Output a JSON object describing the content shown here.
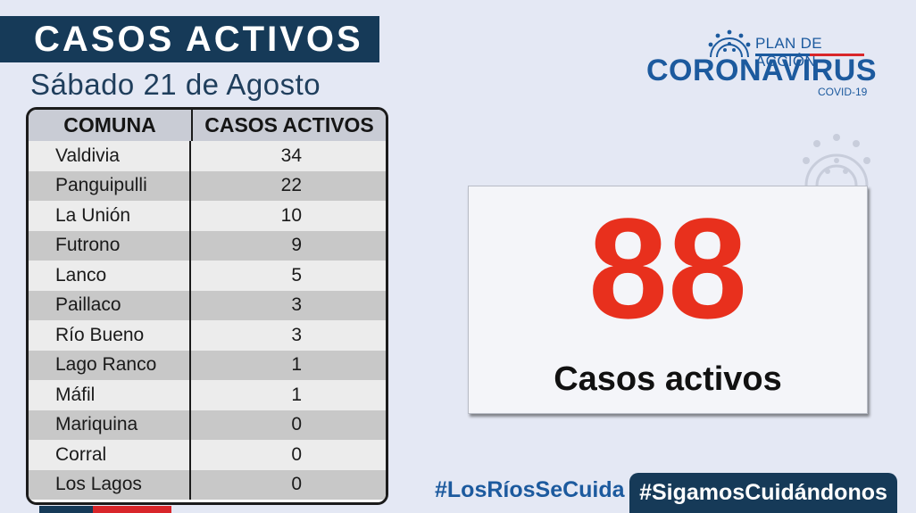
{
  "header": {
    "title": "CASOS ACTIVOS",
    "date": "Sábado 21 de Agosto"
  },
  "logo": {
    "plan": "PLAN DE ACCIÓN",
    "name": "CORONAVIRUS",
    "sub": "COVID-19",
    "icon": "virus-icon"
  },
  "table": {
    "col1": "COMUNA",
    "col2": "CASOS ACTIVOS",
    "rows": [
      {
        "comuna": "Valdivia",
        "casos": "34"
      },
      {
        "comuna": "Panguipulli",
        "casos": "22"
      },
      {
        "comuna": "La Unión",
        "casos": "10"
      },
      {
        "comuna": "Futrono",
        "casos": "9"
      },
      {
        "comuna": "Lanco",
        "casos": "5"
      },
      {
        "comuna": "Paillaco",
        "casos": "3"
      },
      {
        "comuna": "Río Bueno",
        "casos": "3"
      },
      {
        "comuna": "Lago Ranco",
        "casos": "1"
      },
      {
        "comuna": "Máfil",
        "casos": "1"
      },
      {
        "comuna": "Mariquina",
        "casos": "0"
      },
      {
        "comuna": "Corral",
        "casos": "0"
      },
      {
        "comuna": "Los Lagos",
        "casos": "0"
      }
    ]
  },
  "total": {
    "value": "88",
    "label": "Casos activos"
  },
  "hashtags": {
    "left": "#LosRíosSeCuida",
    "right": "#SigamosCuidándonos"
  },
  "colors": {
    "navy": "#163a58",
    "red": "#e8301d",
    "blue": "#1c5a9e"
  }
}
